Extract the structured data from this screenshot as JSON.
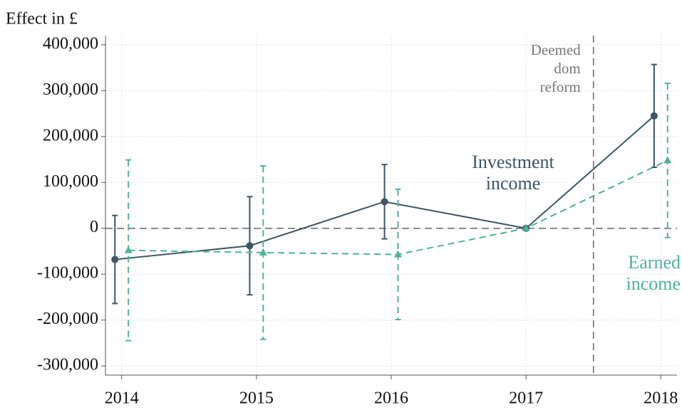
{
  "chart_data": {
    "type": "line",
    "y_axis_title": "Effect in £",
    "xlim": [
      2013.88,
      2018.12
    ],
    "xticks": [
      2014,
      2015,
      2016,
      2017,
      2018
    ],
    "ylim": [
      -320000,
      420000
    ],
    "yticks": [
      {
        "value": -300000,
        "label": "-300,000"
      },
      {
        "value": -200000,
        "label": "-200,000"
      },
      {
        "value": -100000,
        "label": "-100,000"
      },
      0,
      {
        "value": 100000,
        "label": "100,000"
      },
      {
        "value": 200000,
        "label": "200,000"
      },
      {
        "value": 300000,
        "label": "300,000"
      },
      {
        "value": 400000,
        "label": "400,000"
      }
    ],
    "grid": true,
    "reference_lines": {
      "y": 0,
      "x": 2017.5
    },
    "series": [
      {
        "name": [
          "Investment",
          "income"
        ],
        "color": "#3b5563",
        "marker": "circle",
        "dashed": false,
        "x": [
          2013.95,
          2014.95,
          2015.95,
          2017,
          2017.95
        ],
        "values": [
          -68000,
          -38000,
          58000,
          0,
          245000
        ],
        "errors": [
          96000,
          107000,
          81000,
          null,
          112000
        ]
      },
      {
        "name": [
          "Earned",
          "income"
        ],
        "color": "#4db39a",
        "marker": "triangle",
        "dashed": true,
        "x": [
          2014.05,
          2015.05,
          2016.05,
          2017,
          2018.05
        ],
        "values": [
          -48000,
          -53000,
          -57000,
          0,
          148000
        ],
        "errors": [
          197000,
          189000,
          142000,
          null,
          168000
        ]
      }
    ],
    "annotation": [
      "Deemed",
      "dom",
      "reform"
    ]
  }
}
